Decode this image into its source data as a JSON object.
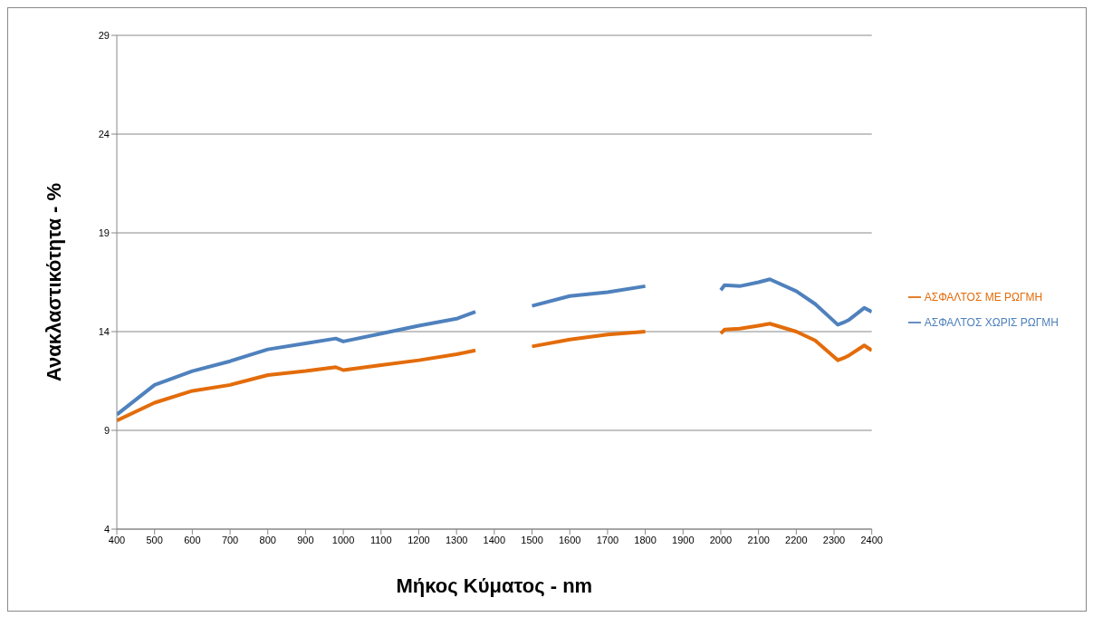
{
  "chart_data": {
    "type": "line",
    "xlabel": "Μήκος Κύματος - nm",
    "ylabel": "Ανακλαστικότητα - %",
    "x": [
      400,
      500,
      600,
      700,
      800,
      900,
      980,
      1000,
      1100,
      1200,
      1300,
      1350,
      1400,
      1500,
      1600,
      1700,
      1800,
      1900,
      2000,
      2010,
      2050,
      2100,
      2130,
      2200,
      2250,
      2310,
      2330,
      2340,
      2380,
      2400
    ],
    "series": [
      {
        "name": "ΑΣΦΑΛΤΟΣ ΜΕ ΡΩΓΜΗ",
        "color": "#e36c0a",
        "values": [
          9.5,
          10.4,
          11.0,
          11.3,
          11.8,
          12.0,
          12.2,
          12.05,
          12.3,
          12.55,
          12.85,
          13.05,
          null,
          13.25,
          13.6,
          13.85,
          14.0,
          null,
          13.9,
          14.1,
          14.15,
          14.3,
          14.4,
          14.0,
          13.55,
          12.55,
          12.7,
          12.8,
          13.3,
          13.05
        ]
      },
      {
        "name": "ΑΣΦΑΛΤΟΣ ΧΩΡΙΣ ΡΩΓΜΗ",
        "color": "#4f81bd",
        "values": [
          9.8,
          11.3,
          12.0,
          12.5,
          13.1,
          13.4,
          13.65,
          13.5,
          13.9,
          14.3,
          14.65,
          15.0,
          null,
          15.3,
          15.8,
          16.0,
          16.3,
          null,
          16.1,
          16.35,
          16.3,
          16.5,
          16.65,
          16.05,
          15.4,
          14.35,
          14.5,
          14.6,
          15.2,
          15.0
        ]
      }
    ],
    "xlim": [
      400,
      2400
    ],
    "xticks": [
      400,
      500,
      600,
      700,
      800,
      900,
      1000,
      1100,
      1200,
      1300,
      1400,
      1500,
      1600,
      1700,
      1800,
      1900,
      2000,
      2100,
      2200,
      2300,
      2400
    ],
    "ylim": [
      4,
      29
    ],
    "yticks": [
      4,
      9,
      14,
      19,
      24,
      29
    ],
    "grid": "y",
    "legend": "right",
    "marker": "none",
    "line_style": "solid"
  }
}
